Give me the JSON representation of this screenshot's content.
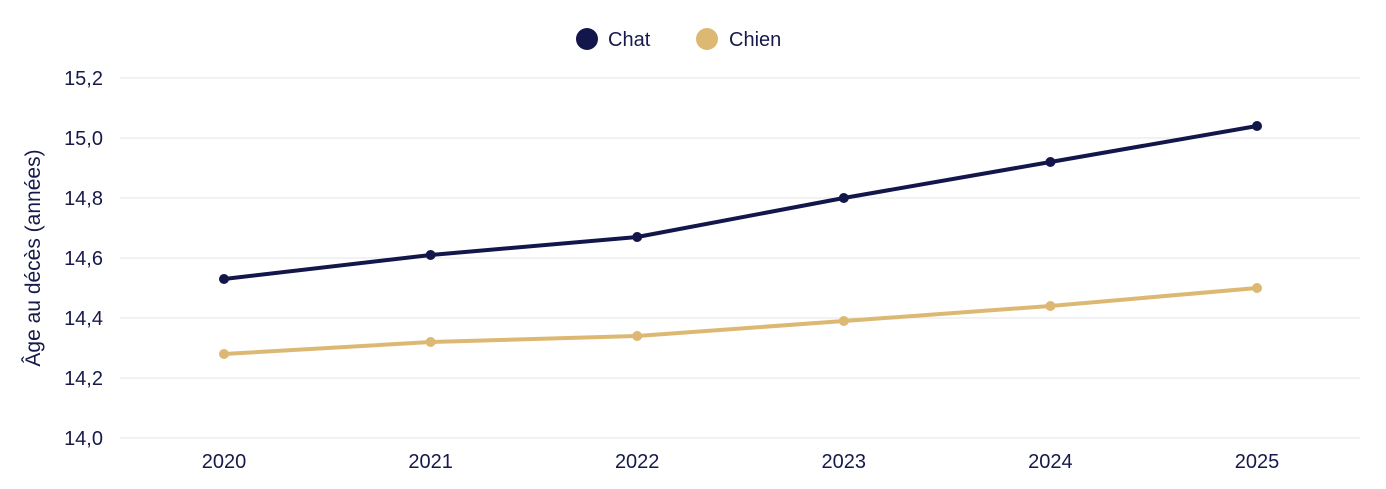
{
  "chart_data": {
    "type": "line",
    "title": "",
    "xlabel": "",
    "ylabel": "Âge au décès (années)",
    "categories": [
      "2020",
      "2021",
      "2022",
      "2023",
      "2024",
      "2025"
    ],
    "ylim": [
      14.0,
      15.2
    ],
    "yticks": [
      "14,0",
      "14,2",
      "14,4",
      "14,6",
      "14,8",
      "15,0",
      "15,2"
    ],
    "grid": true,
    "legend_position": "top-center",
    "series": [
      {
        "name": "Chat",
        "color": "#12164a",
        "values": [
          14.53,
          14.61,
          14.67,
          14.8,
          14.92,
          15.04
        ]
      },
      {
        "name": "Chien",
        "color": "#dcb872",
        "values": [
          14.28,
          14.32,
          14.34,
          14.39,
          14.44,
          14.5
        ]
      }
    ]
  }
}
